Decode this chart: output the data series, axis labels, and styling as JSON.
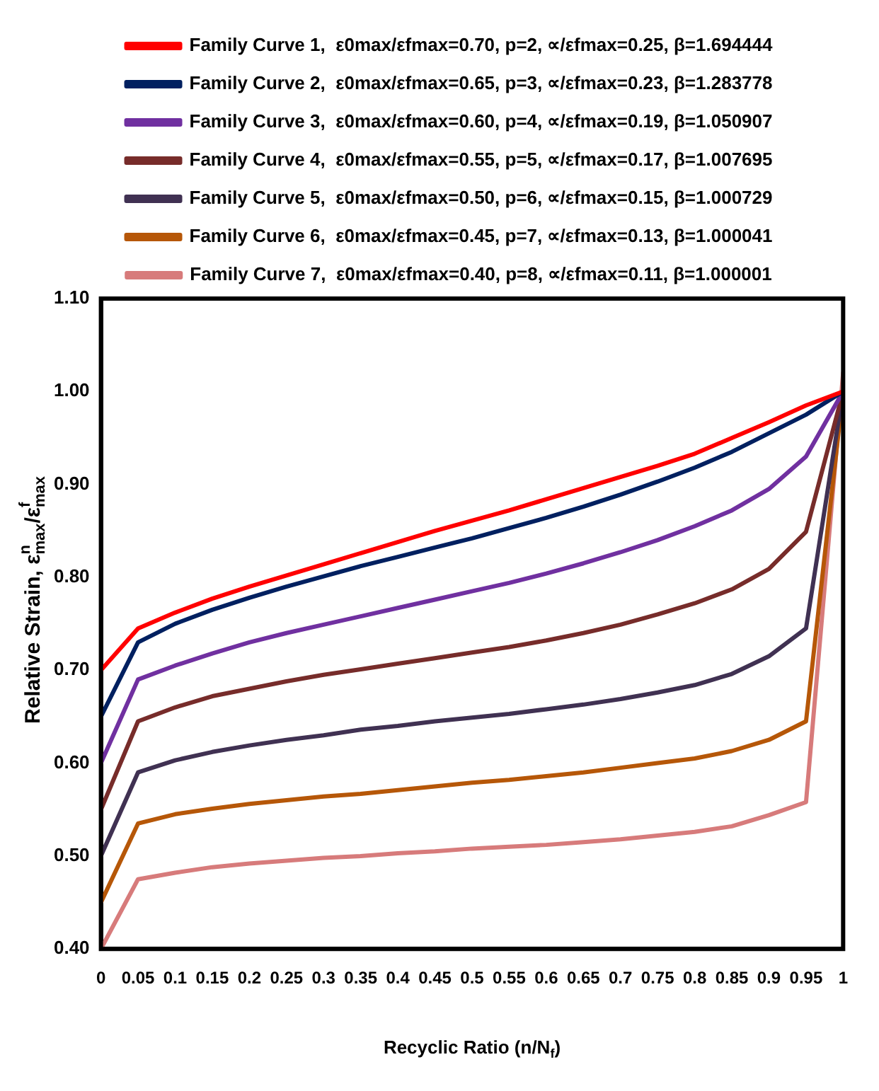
{
  "chart_data": {
    "type": "line",
    "xlabel": "Recyclic Ratio (n/N$_{f}$)",
    "ylabel": "Relative Strain, ε$^{n}$$_{max}$/ε$^{f}$$_{max}$",
    "x": [
      0,
      0.05,
      0.1,
      0.15,
      0.2,
      0.25,
      0.3,
      0.35,
      0.4,
      0.45,
      0.5,
      0.55,
      0.6,
      0.65,
      0.7,
      0.75,
      0.8,
      0.85,
      0.9,
      0.95,
      1
    ],
    "xlim": [
      0,
      1
    ],
    "xticks": [
      0,
      0.05,
      0.1,
      0.15,
      0.2,
      0.25,
      0.3,
      0.35,
      0.4,
      0.45,
      0.5,
      0.55,
      0.6,
      0.65,
      0.7,
      0.75,
      0.8,
      0.85,
      0.9,
      0.95,
      1
    ],
    "ylim": [
      0.4,
      1.1
    ],
    "yticks": [
      {
        "value": 0.4,
        "label": "0.40"
      },
      {
        "value": 0.5,
        "label": "0.50"
      },
      {
        "value": 0.6,
        "label": "0.60"
      },
      {
        "value": 0.7,
        "label": "0.70"
      },
      {
        "value": 0.8,
        "label": "0.80"
      },
      {
        "value": 0.9,
        "label": "0.90"
      },
      {
        "value": 1,
        "label": "1.00"
      },
      {
        "value": 1.1,
        "label": "1.10"
      }
    ],
    "grid": false,
    "legend": "top",
    "marker": "none",
    "line_style": "solid",
    "series": [
      {
        "name": "Family Curve 1,  ε0max/εfmax=0.70, p=2, ∝/εfmax=0.25, β=1.694444",
        "color": "#ff0000",
        "values": [
          0.7,
          0.745,
          0.762,
          0.777,
          0.79,
          0.802,
          0.814,
          0.826,
          0.838,
          0.85,
          0.861,
          0.872,
          0.884,
          0.896,
          0.908,
          0.92,
          0.933,
          0.95,
          0.967,
          0.985,
          1.0
        ]
      },
      {
        "name": "Family Curve 2,  ε0max/εfmax=0.65, p=3, ∝/εfmax=0.23, β=1.283778",
        "color": "#002060",
        "values": [
          0.65,
          0.73,
          0.75,
          0.765,
          0.778,
          0.79,
          0.801,
          0.812,
          0.822,
          0.832,
          0.842,
          0.853,
          0.864,
          0.876,
          0.889,
          0.903,
          0.918,
          0.935,
          0.955,
          0.975,
          1.0
        ]
      },
      {
        "name": "Family Curve 3,  ε0max/εfmax=0.60, p=4, ∝/εfmax=0.19, β=1.050907",
        "color": "#7030a0",
        "values": [
          0.6,
          0.69,
          0.705,
          0.718,
          0.73,
          0.74,
          0.749,
          0.758,
          0.767,
          0.776,
          0.785,
          0.794,
          0.804,
          0.815,
          0.827,
          0.84,
          0.855,
          0.872,
          0.895,
          0.93,
          1.0
        ]
      },
      {
        "name": "Family Curve 4,  ε0max/εfmax=0.55, p=5, ∝/εfmax=0.17, β=1.007695",
        "color": "#772c2a",
        "values": [
          0.55,
          0.645,
          0.66,
          0.672,
          0.68,
          0.688,
          0.695,
          0.701,
          0.707,
          0.713,
          0.719,
          0.725,
          0.732,
          0.74,
          0.749,
          0.76,
          0.772,
          0.787,
          0.809,
          0.849,
          1.0
        ]
      },
      {
        "name": "Family Curve 5,  ε0max/εfmax=0.50, p=6, ∝/εfmax=0.15, β=1.000729",
        "color": "#403152",
        "values": [
          0.5,
          0.59,
          0.603,
          0.612,
          0.619,
          0.625,
          0.63,
          0.636,
          0.64,
          0.645,
          0.649,
          0.653,
          0.658,
          0.663,
          0.669,
          0.676,
          0.684,
          0.696,
          0.715,
          0.745,
          1.0
        ]
      },
      {
        "name": "Family Curve 6,  ε0max/εfmax=0.45, p=7, ∝/εfmax=0.13, β=1.000041",
        "color": "#b65708",
        "values": [
          0.45,
          0.535,
          0.545,
          0.551,
          0.556,
          0.56,
          0.564,
          0.567,
          0.571,
          0.575,
          0.579,
          0.582,
          0.586,
          0.59,
          0.595,
          0.6,
          0.605,
          0.613,
          0.625,
          0.645,
          1.0
        ]
      },
      {
        "name": "Family Curve 7,  ε0max/εfmax=0.40, p=8, ∝/εfmax=0.11, β=1.000001",
        "color": "#d77b7b",
        "values": [
          0.4,
          0.475,
          0.482,
          0.488,
          0.492,
          0.495,
          0.498,
          0.5,
          0.503,
          0.505,
          0.508,
          0.51,
          0.512,
          0.515,
          0.518,
          0.522,
          0.526,
          0.532,
          0.544,
          0.558,
          1.02
        ]
      }
    ]
  }
}
